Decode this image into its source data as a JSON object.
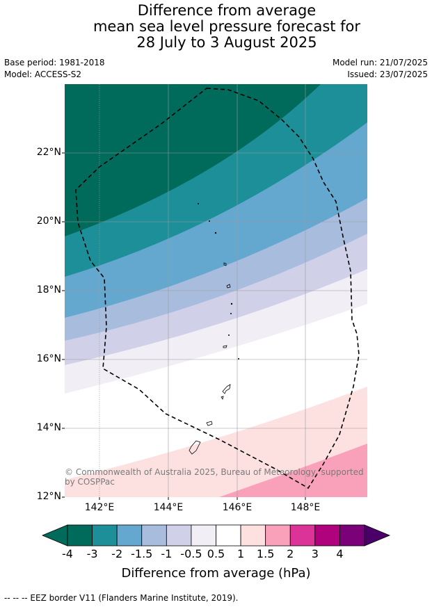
{
  "title": {
    "line1": "Difference from average",
    "line2": "mean sea level pressure forecast for",
    "line3": "28 July to 3 August 2025"
  },
  "meta": {
    "base_period": "Base period: 1981-2018",
    "model": "Model: ACCESS-S2",
    "model_run": "Model run: 21/07/2025",
    "issued": "Issued: 23/07/2025"
  },
  "axes": {
    "lat_labels": [
      "22°N",
      "20°N",
      "18°N",
      "16°N",
      "14°N",
      "12°N"
    ],
    "lon_labels": [
      "142°E",
      "144°E",
      "146°E",
      "148°E"
    ]
  },
  "copyright": "© Commonwealth of Australia 2025, Bureau of Meteorology, supported by COSPPac",
  "colorbar": {
    "title": "Difference from average (hPa)",
    "tick_labels": [
      "-4",
      "-3",
      "-2",
      "-1.5",
      "-1",
      "-0.5",
      "0.5",
      "1",
      "1.5",
      "2",
      "3",
      "4"
    ],
    "colors": [
      "#006b5a",
      "#1d8f99",
      "#64a8d0",
      "#a8bcde",
      "#d0d0e8",
      "#f1eef6",
      "#ffffff",
      "#fde0e0",
      "#f9a0ba",
      "#dc3398",
      "#b0027c",
      "#7a0177"
    ],
    "under_color": "#006b5a",
    "over_color": "#4a0068"
  },
  "footer": "--  --  -- EEZ border V11 (Flanders Marine Institute, 2019)."
}
